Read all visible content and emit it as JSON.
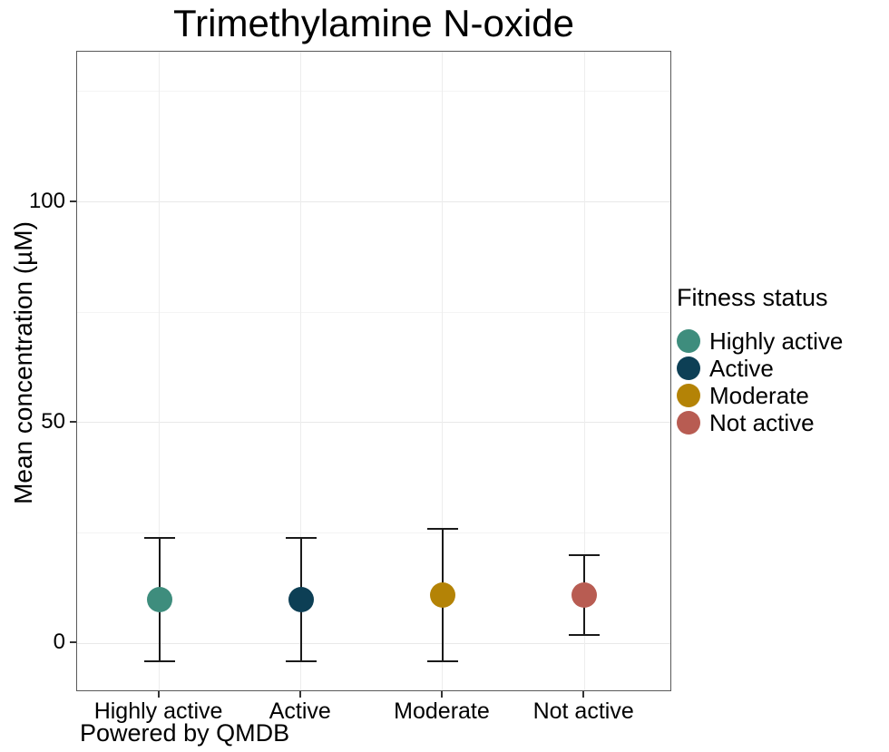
{
  "title": "Trimethylamine N-oxide",
  "caption": "Powered by QMDB",
  "y_axis": {
    "label": "Mean concentration (µM)"
  },
  "legend": {
    "title": "Fitness status",
    "items": [
      {
        "label": "Highly active",
        "color": "#3E8D7D"
      },
      {
        "label": "Active",
        "color": "#0D3F55"
      },
      {
        "label": "Moderate",
        "color": "#B48306"
      },
      {
        "label": "Not active",
        "color": "#B85C52"
      }
    ]
  },
  "chart_data": {
    "type": "scatter",
    "title": "Trimethylamine N-oxide",
    "xlabel": "",
    "ylabel": "Mean concentration (µM)",
    "categories": [
      "Highly active",
      "Active",
      "Moderate",
      "Not active"
    ],
    "series": [
      {
        "name": "Highly active",
        "color": "#3E8D7D",
        "mean": 10,
        "error_low": -4,
        "error_high": 24
      },
      {
        "name": "Active",
        "color": "#0D3F55",
        "mean": 10,
        "error_low": -4,
        "error_high": 24
      },
      {
        "name": "Moderate",
        "color": "#B48306",
        "mean": 11,
        "error_low": -4,
        "error_high": 26
      },
      {
        "name": "Not active",
        "color": "#B85C52",
        "mean": 11,
        "error_low": 2,
        "error_high": 20
      }
    ],
    "yticks": [
      0,
      50,
      100
    ],
    "minor_gridlines": [
      25,
      75,
      125
    ],
    "ylim": [
      -11,
      134
    ],
    "grid": true,
    "legend_position": "right",
    "legend_title": "Fitness status",
    "error_bar_color": "#1a1a1a"
  }
}
